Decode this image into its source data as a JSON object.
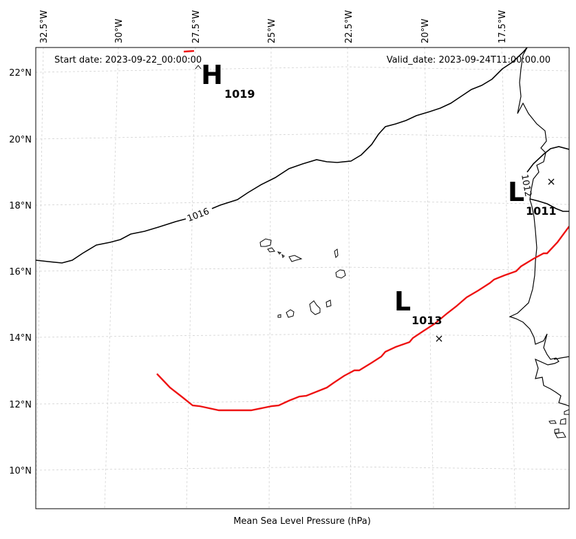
{
  "start_date": "Start date: 2023-09-22_00:00:00",
  "valid_date": "Valid_date: 2023-09-24T11:00:00.00",
  "xlabel": "Mean Sea Level Pressure (hPa)",
  "lon_ticks": [
    "32.5°W",
    "30°W",
    "27.5°W",
    "25°W",
    "22.5°W",
    "20°W",
    "17.5°W"
  ],
  "lat_ticks": [
    "22°N",
    "20°N",
    "18°N",
    "16°N",
    "14°N",
    "12°N",
    "10°N"
  ],
  "pressure_centers": [
    {
      "symbol": "H",
      "value": "1019"
    },
    {
      "symbol": "L",
      "value": "1011"
    },
    {
      "symbol": "L",
      "value": "1013"
    }
  ],
  "isobar_labels": [
    "1016",
    "1012"
  ],
  "colors": {
    "track": "#ee1111",
    "isobar": "#000000",
    "grid": "#cccccc",
    "coast": "#000000"
  }
}
